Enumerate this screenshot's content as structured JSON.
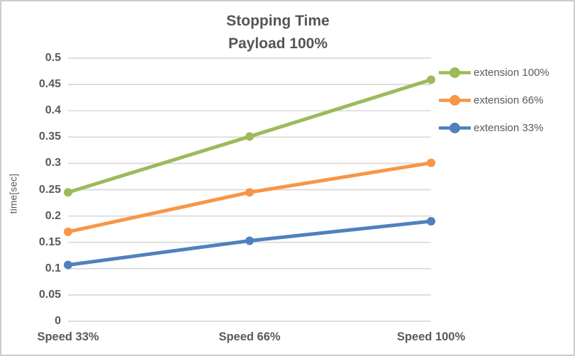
{
  "chart_data": {
    "type": "line",
    "title": "Stopping Time",
    "subtitle": "Payload 100%",
    "ylabel": "time[sec]",
    "categories": [
      "Speed 33%",
      "Speed 66%",
      "Speed 100%"
    ],
    "series": [
      {
        "name": "extension 100%",
        "color": "#9BBB59",
        "values": [
          0.245,
          0.351,
          0.459
        ]
      },
      {
        "name": "extension 66%",
        "color": "#F79646",
        "values": [
          0.17,
          0.245,
          0.301
        ]
      },
      {
        "name": "extension 33%",
        "color": "#4F81BD",
        "values": [
          0.107,
          0.153,
          0.19
        ]
      }
    ],
    "ylim": [
      0,
      0.5
    ],
    "yticks": [
      "0.5",
      "0.45",
      "0.4",
      "0.35",
      "0.3",
      "0.25",
      "0.2",
      "0.15",
      "0.1",
      "0.05",
      "0"
    ],
    "grid": true,
    "legend_position": "right",
    "colors": {
      "grid": "#D9D9D9",
      "axis_text": "#595959",
      "title_text": "#555555",
      "background": "#FFFFFF",
      "border": "#CDCDCD"
    }
  }
}
